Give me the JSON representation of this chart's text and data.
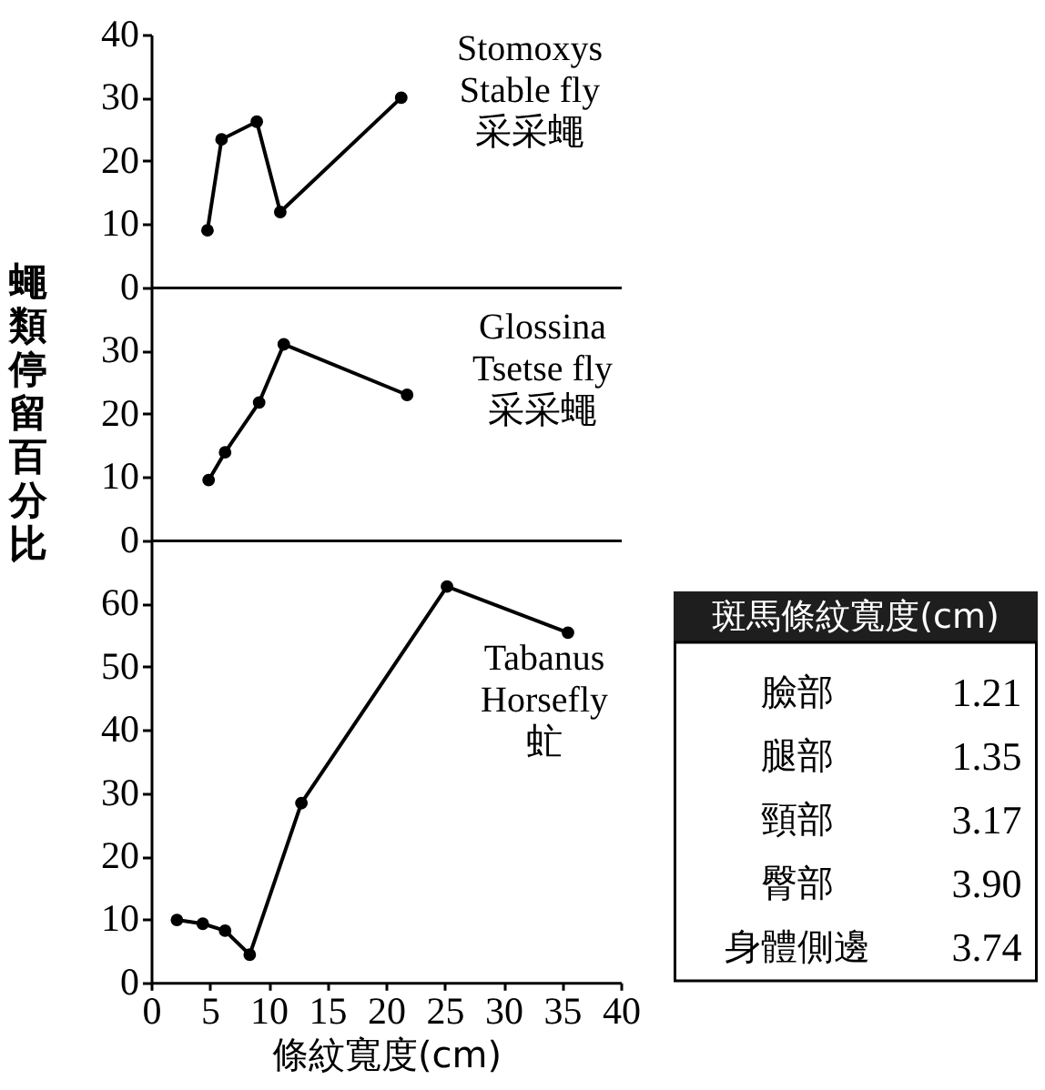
{
  "chart_data": [
    {
      "type": "line",
      "series": [
        {
          "name": "Stomoxys\nStable fly\n采采蠅",
          "color": "#000000",
          "x": [
            4.8,
            6.0,
            9.0,
            11.0,
            21.3
          ],
          "values": [
            9.0,
            23.4,
            26.2,
            11.9,
            30.0
          ]
        }
      ],
      "xlim": [
        0,
        40
      ],
      "ylim": [
        0,
        40
      ],
      "yticks": [
        0,
        10,
        20,
        30,
        40
      ],
      "tick_labels": "y",
      "marker": "circle",
      "line_style": "solid"
    },
    {
      "type": "line",
      "ylabel": "蠅類停留百分比",
      "series": [
        {
          "name": "Glossina\nTsetse fly\n采采蠅",
          "color": "#000000",
          "x": [
            4.9,
            6.3,
            9.2,
            11.3,
            21.8
          ],
          "values": [
            9.5,
            13.9,
            21.8,
            31.0,
            23.0
          ]
        }
      ],
      "xlim": [
        0,
        40
      ],
      "ylim": [
        0,
        40
      ],
      "yticks": [
        0,
        10,
        20,
        30
      ],
      "tick_labels": "y",
      "marker": "circle",
      "line_style": "solid"
    },
    {
      "type": "line",
      "xlabel": "條紋寬度(cm)",
      "series": [
        {
          "name": "Tabanus\nHorsefly\n虻",
          "color": "#000000",
          "x": [
            2.2,
            4.4,
            6.3,
            8.4,
            12.8,
            25.2,
            35.5
          ],
          "values": [
            9.9,
            9.3,
            8.2,
            4.4,
            28.4,
            62.7,
            55.4
          ]
        }
      ],
      "xlim": [
        0,
        40
      ],
      "ylim": [
        0,
        70
      ],
      "xticks": [
        0,
        5,
        10,
        15,
        20,
        25,
        30,
        35,
        40
      ],
      "yticks": [
        0,
        10,
        20,
        30,
        40,
        50,
        60
      ],
      "marker": "circle",
      "line_style": "solid"
    },
    {
      "type": "other",
      "title": "斑馬條紋寬度(cm)",
      "categories": [
        "臉部",
        "腿部",
        "頸部",
        "臀部",
        "身體側邊"
      ],
      "value_labels": [
        "1.21",
        "1.35",
        "3.17",
        "3.90",
        "3.74"
      ]
    }
  ]
}
